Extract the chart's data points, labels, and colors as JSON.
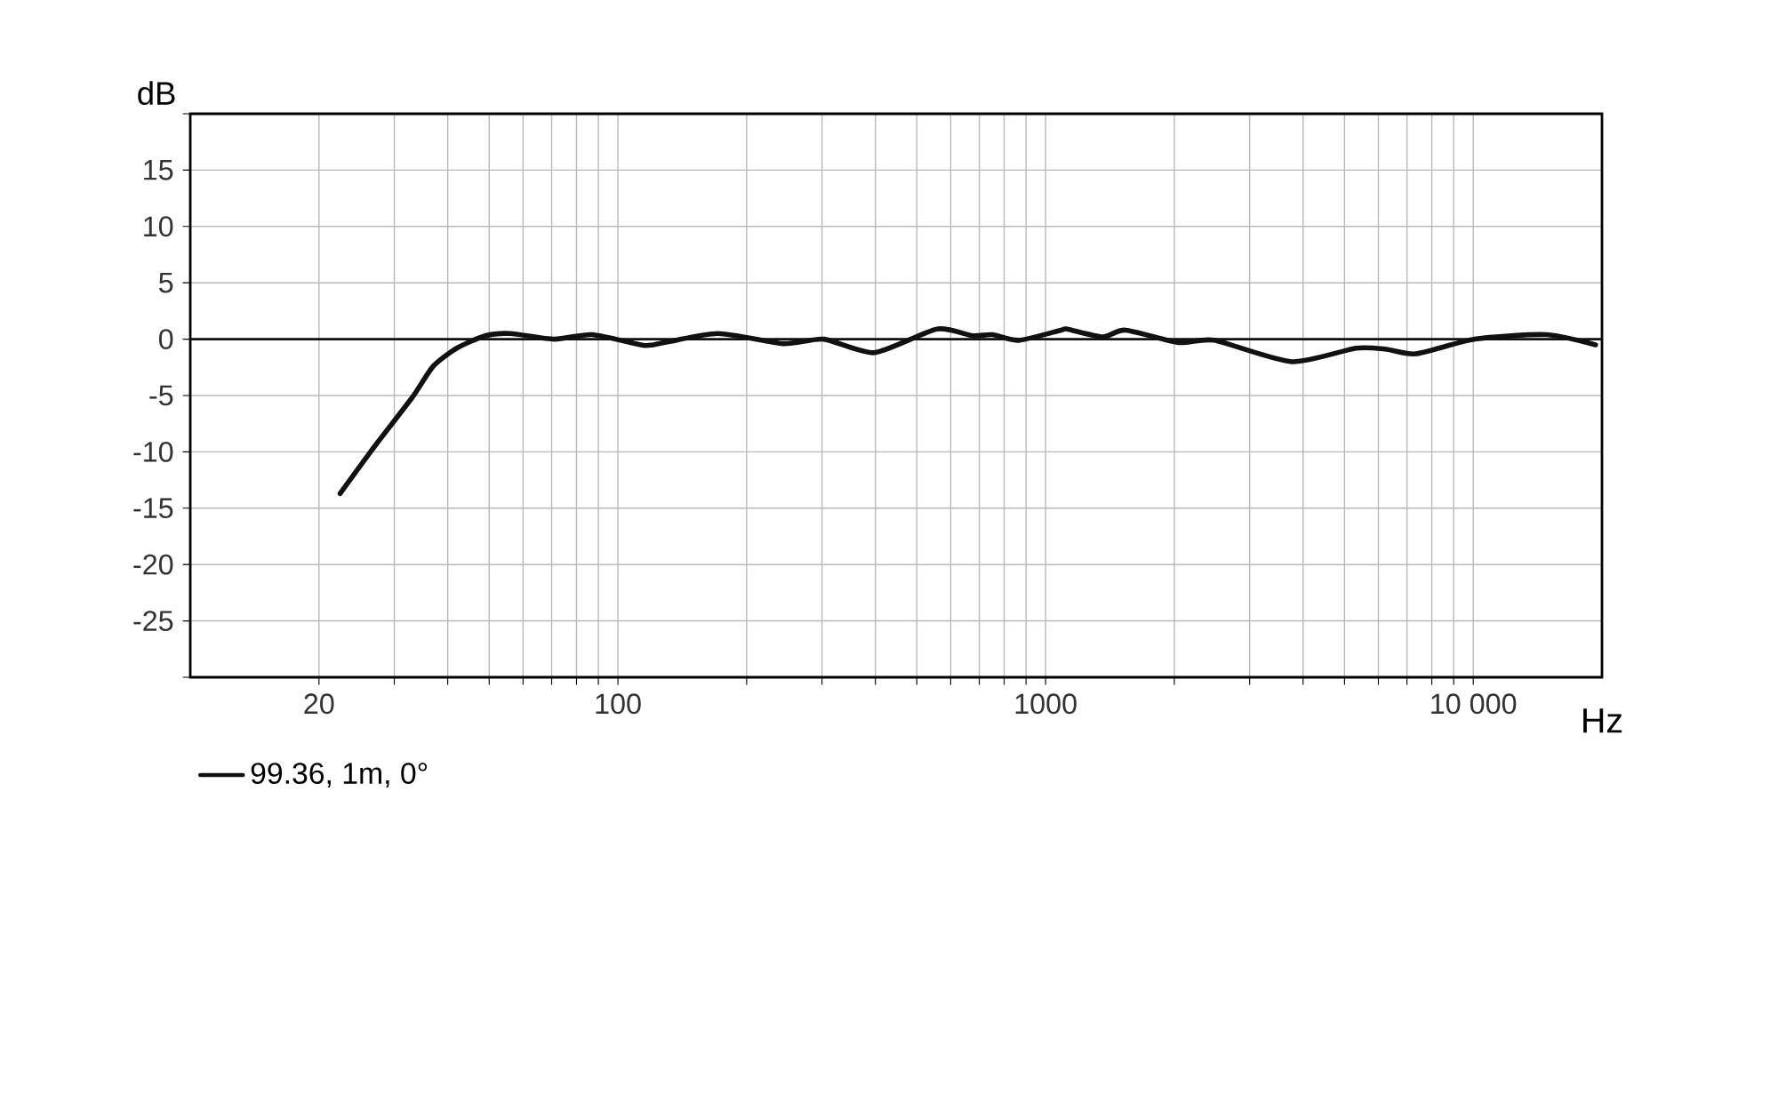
{
  "chart_data": {
    "type": "line",
    "xlabel": "Hz",
    "ylabel": "dB",
    "x": [
      22.4,
      27,
      33,
      37,
      42,
      49,
      56,
      71,
      87,
      113,
      121,
      171,
      243,
      303,
      398,
      557,
      675,
      751,
      867,
      1087,
      1122,
      1358,
      1538,
      2048,
      2477,
      3763,
      5322,
      6266,
      7345,
      10090,
      14790,
      19320
    ],
    "series": [
      {
        "name": "99.36, 1m, 0°",
        "color": "#111111",
        "values": [
          -13.7,
          -9.5,
          -5.2,
          -2.4,
          -0.8,
          0.3,
          0.5,
          0.0,
          0.4,
          -0.5,
          -0.5,
          0.5,
          -0.4,
          0.0,
          -1.2,
          0.9,
          0.3,
          0.4,
          -0.1,
          0.8,
          0.9,
          0.2,
          0.8,
          -0.3,
          -0.1,
          -2.0,
          -0.8,
          -0.9,
          -1.3,
          0.0,
          0.4,
          -0.5
        ]
      }
    ],
    "log": "x",
    "xlim": [
      10,
      20000
    ],
    "ylim": [
      -30,
      20
    ],
    "xticks": [
      20,
      {
        "value": 30,
        "label": null
      },
      {
        "value": 40,
        "label": null
      },
      {
        "value": 50,
        "label": null
      },
      {
        "value": 60,
        "label": null
      },
      {
        "value": 70,
        "label": null
      },
      {
        "value": 80,
        "label": null
      },
      {
        "value": 90,
        "label": null
      },
      100,
      {
        "value": 200,
        "label": null
      },
      {
        "value": 300,
        "label": null
      },
      {
        "value": 400,
        "label": null
      },
      {
        "value": 500,
        "label": null
      },
      {
        "value": 600,
        "label": null
      },
      {
        "value": 700,
        "label": null
      },
      {
        "value": 800,
        "label": null
      },
      {
        "value": 900,
        "label": null
      },
      1000,
      {
        "value": 2000,
        "label": null
      },
      {
        "value": 3000,
        "label": null
      },
      {
        "value": 4000,
        "label": null
      },
      {
        "value": 5000,
        "label": null
      },
      {
        "value": 6000,
        "label": null
      },
      {
        "value": 7000,
        "label": null
      },
      {
        "value": 8000,
        "label": null
      },
      {
        "value": 9000,
        "label": null
      },
      {
        "value": 10000,
        "label": "10 000"
      }
    ],
    "yticks": [
      {
        "value": 20,
        "label": null
      },
      15,
      10,
      5,
      0,
      -5,
      -10,
      -15,
      -20,
      -25,
      {
        "value": -30,
        "label": null
      }
    ],
    "ref_lines": [
      {
        "axis": "y",
        "value": 0,
        "color": "#111111"
      }
    ],
    "grid": true,
    "legend": "bottom left",
    "marker": "none",
    "line_style": "solid"
  }
}
